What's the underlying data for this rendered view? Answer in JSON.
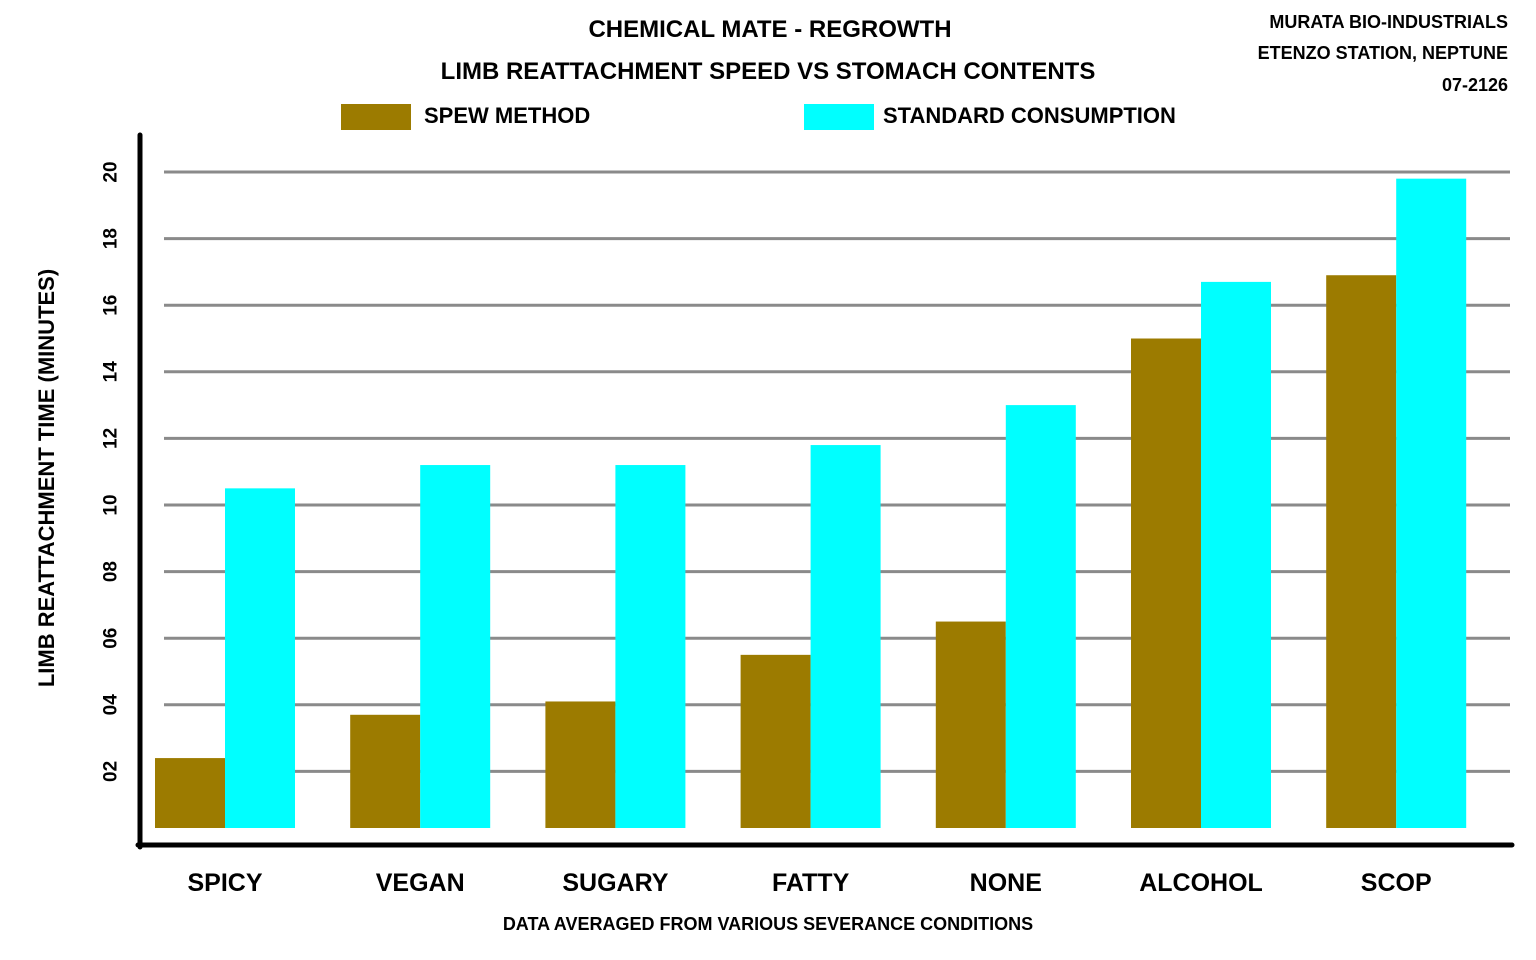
{
  "header": {
    "title": "CHEMICAL MATE - REGROWTH",
    "subtitle": "LIMB REATTACHMENT SPEED VS STOMACH CONTENTS",
    "corner_lines": [
      "MURATA BIO-INDUSTRIALS",
      "ETENZO STATION, NEPTUNE",
      "07-2126"
    ]
  },
  "footer": {
    "note": "DATA AVERAGED FROM VARIOUS SEVERANCE CONDITIONS"
  },
  "chart_data": {
    "type": "bar",
    "title": "LIMB REATTACHMENT SPEED VS STOMACH CONTENTS",
    "xlabel": "",
    "ylabel": "LIMB REATTACHMENT TIME (MINUTES)",
    "ylim": [
      0,
      20
    ],
    "grid": true,
    "legend_position": "top",
    "categories": [
      "SPICY",
      "VEGAN",
      "SUGARY",
      "FATTY",
      "NONE",
      "ALCOHOL",
      "SCOP"
    ],
    "y_ticks": [
      2,
      4,
      6,
      8,
      10,
      12,
      14,
      16,
      18,
      20
    ],
    "y_tick_labels": [
      "02",
      "04",
      "06",
      "08",
      "10",
      "12",
      "14",
      "16",
      "18",
      "20"
    ],
    "series": [
      {
        "name": "SPEW METHOD",
        "color": "#9c7b00",
        "values": [
          2.4,
          3.7,
          4.1,
          5.5,
          6.5,
          15.0,
          16.9
        ]
      },
      {
        "name": "STANDARD CONSUMPTION",
        "color": "#00ffff",
        "values": [
          10.5,
          11.2,
          11.2,
          11.8,
          13.0,
          16.7,
          19.8
        ]
      }
    ]
  }
}
